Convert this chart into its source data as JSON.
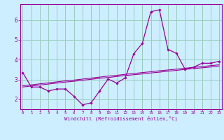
{
  "xlabel": "Windchill (Refroidissement éolien,°C)",
  "bg_color": "#cceeff",
  "line_color": "#990099",
  "grid_color": "#99ccbb",
  "x_values": [
    0,
    1,
    2,
    3,
    4,
    5,
    6,
    7,
    8,
    9,
    10,
    11,
    12,
    13,
    14,
    15,
    16,
    17,
    18,
    19,
    20,
    21,
    22,
    23
  ],
  "y_main": [
    3.35,
    2.62,
    2.62,
    2.42,
    2.52,
    2.52,
    2.15,
    1.72,
    1.82,
    2.42,
    3.02,
    2.82,
    3.08,
    4.3,
    4.82,
    6.42,
    6.52,
    4.52,
    4.32,
    3.52,
    3.62,
    3.82,
    3.82,
    3.92
  ],
  "y_ref1": [
    2.62,
    2.67,
    2.72,
    2.77,
    2.82,
    2.87,
    2.91,
    2.96,
    3.01,
    3.06,
    3.1,
    3.15,
    3.2,
    3.24,
    3.28,
    3.33,
    3.37,
    3.42,
    3.46,
    3.51,
    3.55,
    3.59,
    3.63,
    3.68
  ],
  "y_ref2": [
    2.68,
    2.73,
    2.78,
    2.83,
    2.88,
    2.93,
    2.97,
    3.02,
    3.07,
    3.12,
    3.17,
    3.21,
    3.26,
    3.3,
    3.35,
    3.39,
    3.44,
    3.48,
    3.52,
    3.57,
    3.61,
    3.65,
    3.7,
    3.74
  ],
  "ylim": [
    1.5,
    6.8
  ],
  "xlim": [
    -0.3,
    23.3
  ],
  "yticks": [
    2,
    3,
    4,
    5,
    6
  ],
  "xticks": [
    0,
    1,
    2,
    3,
    4,
    5,
    6,
    7,
    8,
    9,
    10,
    11,
    12,
    13,
    14,
    15,
    16,
    17,
    18,
    19,
    20,
    21,
    22,
    23
  ]
}
